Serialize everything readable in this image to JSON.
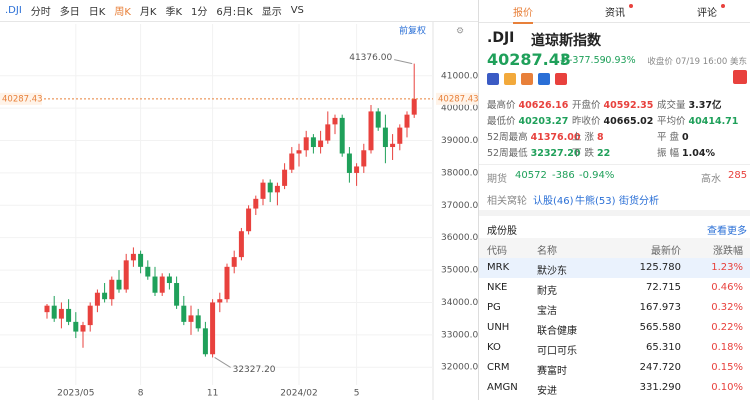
{
  "toolbar": {
    "symbol": ".DJI",
    "items": [
      "分时",
      "多日",
      "日K",
      "周K",
      "月K",
      "季K",
      "1分",
      "6月:日K",
      "显示",
      "VS"
    ],
    "adjust": "前复权"
  },
  "chart_data": {
    "type": "candlestick",
    "categories": [
      null,
      null,
      null,
      null,
      "2023/05",
      null,
      null,
      null,
      null,
      null,
      null,
      null,
      null,
      "8",
      null,
      null,
      null,
      null,
      null,
      null,
      null,
      null,
      null,
      "11",
      null,
      null,
      null,
      null,
      null,
      null,
      null,
      null,
      null,
      null,
      null,
      "2024/02",
      null,
      null,
      null,
      null,
      null,
      null,
      null,
      "5",
      null,
      null,
      null,
      null,
      null,
      null,
      null,
      null
    ],
    "ohlc": [
      [
        33700,
        33950,
        33500,
        33900
      ],
      [
        33900,
        34200,
        33400,
        33500
      ],
      [
        33500,
        34000,
        33200,
        33800
      ],
      [
        33800,
        34100,
        33300,
        33400
      ],
      [
        33400,
        33700,
        32900,
        33100
      ],
      [
        33100,
        33400,
        32600,
        33300
      ],
      [
        33300,
        34000,
        33100,
        33900
      ],
      [
        33900,
        34400,
        33700,
        34300
      ],
      [
        34300,
        34600,
        34000,
        34100
      ],
      [
        34100,
        34800,
        33900,
        34700
      ],
      [
        34700,
        35000,
        34300,
        34400
      ],
      [
        34400,
        35500,
        34300,
        35300
      ],
      [
        35300,
        35700,
        35100,
        35500
      ],
      [
        35500,
        35600,
        34900,
        35100
      ],
      [
        35100,
        35300,
        34700,
        34800
      ],
      [
        34800,
        35100,
        34200,
        34300
      ],
      [
        34300,
        34900,
        34200,
        34800
      ],
      [
        34800,
        34900,
        34400,
        34600
      ],
      [
        34600,
        34800,
        33800,
        33900
      ],
      [
        33900,
        34200,
        33300,
        33400
      ],
      [
        33400,
        33900,
        33000,
        33600
      ],
      [
        33600,
        33800,
        33100,
        33200
      ],
      [
        33200,
        33400,
        32327.2,
        32400
      ],
      [
        32400,
        34100,
        32300,
        34000
      ],
      [
        34000,
        34300,
        33700,
        34100
      ],
      [
        34100,
        35200,
        34000,
        35100
      ],
      [
        35100,
        35600,
        34900,
        35400
      ],
      [
        35400,
        36300,
        35300,
        36200
      ],
      [
        36200,
        37000,
        36100,
        36900
      ],
      [
        36900,
        37300,
        36700,
        37200
      ],
      [
        37200,
        37800,
        37000,
        37700
      ],
      [
        37700,
        37800,
        37100,
        37400
      ],
      [
        37400,
        37700,
        37000,
        37600
      ],
      [
        37600,
        38300,
        37500,
        38100
      ],
      [
        38100,
        38800,
        38000,
        38600
      ],
      [
        38600,
        38900,
        38200,
        38700
      ],
      [
        38700,
        39300,
        38500,
        39100
      ],
      [
        39100,
        39200,
        38600,
        38800
      ],
      [
        38800,
        39300,
        38600,
        39000
      ],
      [
        39000,
        39900,
        38900,
        39500
      ],
      [
        39500,
        39800,
        39200,
        39700
      ],
      [
        39700,
        39800,
        38500,
        38600
      ],
      [
        38600,
        38800,
        37700,
        38000
      ],
      [
        38000,
        38300,
        37600,
        38200
      ],
      [
        38200,
        38900,
        38000,
        38700
      ],
      [
        38700,
        40100,
        38600,
        39900
      ],
      [
        39900,
        40000,
        39300,
        39400
      ],
      [
        39400,
        39800,
        38300,
        38800
      ],
      [
        38800,
        39200,
        38400,
        38900
      ],
      [
        38900,
        39500,
        38700,
        39400
      ],
      [
        39400,
        39900,
        39100,
        39800
      ],
      [
        39800,
        41376,
        39700,
        40287.43
      ]
    ],
    "up_color": "#e8413d",
    "down_color": "#1fa05a",
    "ylim": [
      31450,
      42600
    ],
    "yticks": [
      {
        "value": 32000,
        "label": "32000.00"
      },
      {
        "value": 33000,
        "label": "33000.00"
      },
      {
        "value": 34000,
        "label": "34000.00"
      },
      {
        "value": 35000,
        "label": "35000.00"
      },
      {
        "value": 36000,
        "label": "36000.00"
      },
      {
        "value": 37000,
        "label": "37000.00"
      },
      {
        "value": 38000,
        "label": "38000.00"
      },
      {
        "value": 39000,
        "label": "39000.00"
      },
      {
        "value": 40000,
        "label": "40000.00"
      },
      {
        "value": 41000,
        "label": "41000.00"
      }
    ],
    "last": {
      "value": 40287.43,
      "label": "40287.43"
    },
    "annotations": [
      "41376.00",
      "32327.20"
    ],
    "grid": true
  },
  "tabs": [
    "报价",
    "资讯",
    "评论"
  ],
  "quote": {
    "symbol": ".DJI",
    "name": "道琼斯指数",
    "price": "40287.43",
    "change": "-377.59",
    "change_pct": "-0.93%",
    "status": "收盘价 07/19 16:00 美东"
  },
  "stats": [
    {
      "label": "最高价",
      "value": "40626.16"
    },
    {
      "label": "开盘价",
      "value": "40592.35"
    },
    {
      "label": "成交量",
      "value": "3.37亿"
    },
    {
      "label": "最低价",
      "value": "40203.27"
    },
    {
      "label": "昨收价",
      "value": "40665.02"
    },
    {
      "label": "平均价",
      "value": "40414.71"
    },
    {
      "label": "52周最高",
      "value": "41376.00"
    },
    {
      "label": "上 涨",
      "value": "8"
    },
    {
      "label": "平 盘",
      "value": "0"
    },
    {
      "label": "52周最低",
      "value": "32327.20"
    },
    {
      "label": "下 跌",
      "value": "22"
    },
    {
      "label": "振 幅",
      "value": "1.04%"
    }
  ],
  "futures": {
    "label": "期货",
    "price": "40572",
    "change": "-386",
    "change_pct": "-0.94%",
    "basis_label": "高水",
    "basis": "285"
  },
  "related": {
    "label": "相关窝轮",
    "links": [
      "认股(46)",
      "牛熊(53)",
      "街货分析"
    ]
  },
  "components": {
    "title": "成份股",
    "more": "查看更多",
    "header": [
      "代码",
      "名称",
      "最新价",
      "涨跌幅"
    ],
    "rows": [
      [
        "MRK",
        "默沙东",
        "125.780",
        "1.23%"
      ],
      [
        "NKE",
        "耐克",
        "72.715",
        "0.46%"
      ],
      [
        "PG",
        "宝洁",
        "167.973",
        "0.32%"
      ],
      [
        "UNH",
        "联合健康",
        "565.580",
        "0.22%"
      ],
      [
        "KO",
        "可口可乐",
        "65.310",
        "0.18%"
      ],
      [
        "CRM",
        "赛富时",
        "247.720",
        "0.15%"
      ],
      [
        "AMGN",
        "安进",
        "331.290",
        "0.10%"
      ]
    ]
  }
}
